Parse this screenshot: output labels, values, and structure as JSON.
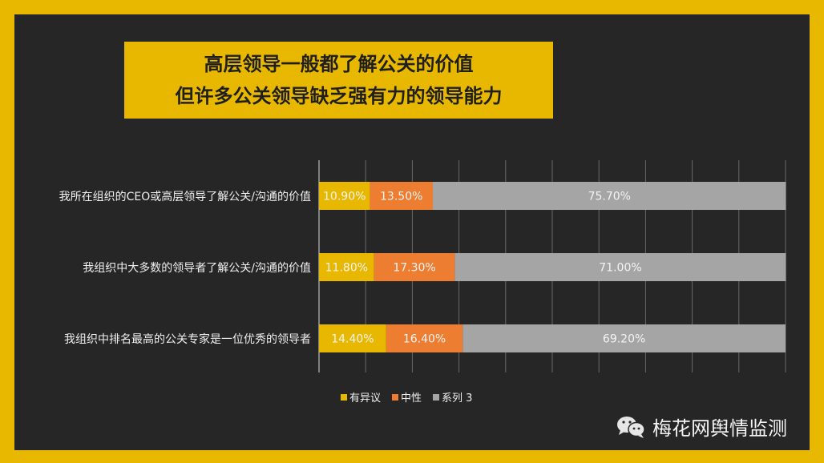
{
  "title": {
    "line1": "高层领导一般都了解公关的价值",
    "line2": "但许多公关领导缺乏强有力的领导能力"
  },
  "chart_data": {
    "type": "bar",
    "orientation": "horizontal",
    "stacked": true,
    "categories": [
      "我所在组织的CEO或高层领导了解公关/沟通的价值",
      "我组织中大多数的领导者了解公关/沟通的价值",
      "我组织中排名最高的公关专家是一位优秀的领导者"
    ],
    "series": [
      {
        "name": "有异议",
        "values": [
          10.9,
          11.8,
          14.4
        ],
        "labels": [
          "10.90%",
          "11.80%",
          "14.40%"
        ],
        "color": "#e8b800"
      },
      {
        "name": "中性",
        "values": [
          13.5,
          17.3,
          16.4
        ],
        "labels": [
          "13.50%",
          "17.30%",
          "16.40%"
        ],
        "color": "#ed7d31"
      },
      {
        "name": "系列 3",
        "values": [
          75.7,
          71.0,
          69.2
        ],
        "labels": [
          "75.70%",
          "71.00%",
          "69.20%"
        ],
        "color": "#a5a5a5"
      }
    ],
    "xlim": [
      0,
      100
    ],
    "grid": true,
    "legend": "bottom"
  },
  "brand": {
    "name": "梅花网舆情监测",
    "icon": "wechat-icon"
  }
}
